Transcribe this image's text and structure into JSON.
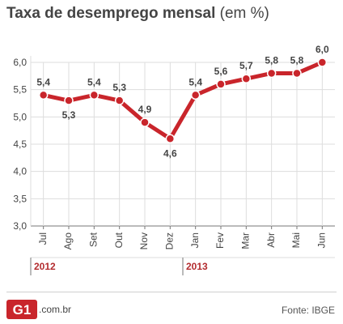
{
  "title": {
    "bold": "Taxa de desemprego mensal",
    "unit": "(em %)"
  },
  "colors": {
    "line": "#c9252b",
    "year": "#b32c2f",
    "grid": "#dddddd",
    "axis": "#777777"
  },
  "chart_data": {
    "type": "line",
    "categories": [
      "Jul",
      "Ago",
      "Set",
      "Out",
      "Nov",
      "Dez",
      "Jan",
      "Fev",
      "Mar",
      "Abr",
      "Mai",
      "Jun"
    ],
    "series": [
      {
        "values": [
          5.4,
          5.3,
          5.4,
          5.3,
          4.9,
          4.6,
          5.4,
          5.6,
          5.7,
          5.8,
          5.8,
          6.0
        ]
      }
    ],
    "data_labels": [
      "5,4",
      "5,3",
      "5,4",
      "5,3",
      "4,9",
      "4,6",
      "5,4",
      "5,6",
      "5,7",
      "5,8",
      "5,8",
      "6,0"
    ],
    "yticks": [
      "3,0",
      "3,5",
      "4,0",
      "4,5",
      "5,0",
      "5,5",
      "6,0"
    ],
    "ylim": [
      3.0,
      6.0
    ],
    "year_groups": [
      {
        "label": "2012",
        "start": 0,
        "end": 5
      },
      {
        "label": "2013",
        "start": 6,
        "end": 11
      }
    ],
    "grid": true
  },
  "footer": {
    "logo_text": "G1",
    "domain": ".com.br",
    "source": "Fonte: IBGE"
  }
}
